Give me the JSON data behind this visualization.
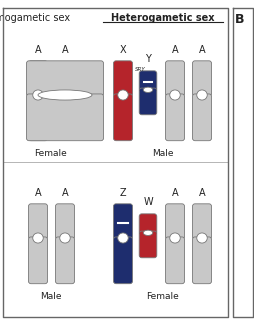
{
  "gray": "#c8c8c8",
  "red": "#b5242b",
  "dark_blue": "#1e2d6e",
  "white": "#ffffff",
  "bg": "#ffffff",
  "border_color": "#666666",
  "text_color": "#222222",
  "title_heterogametic": "Heterogametic sex",
  "title_homogametic": "Homogametic sex",
  "label_male_top": "Male",
  "label_female_top": "Female",
  "label_male_bot": "Male",
  "label_female_bot": "Female",
  "SRY_label": "SRY"
}
